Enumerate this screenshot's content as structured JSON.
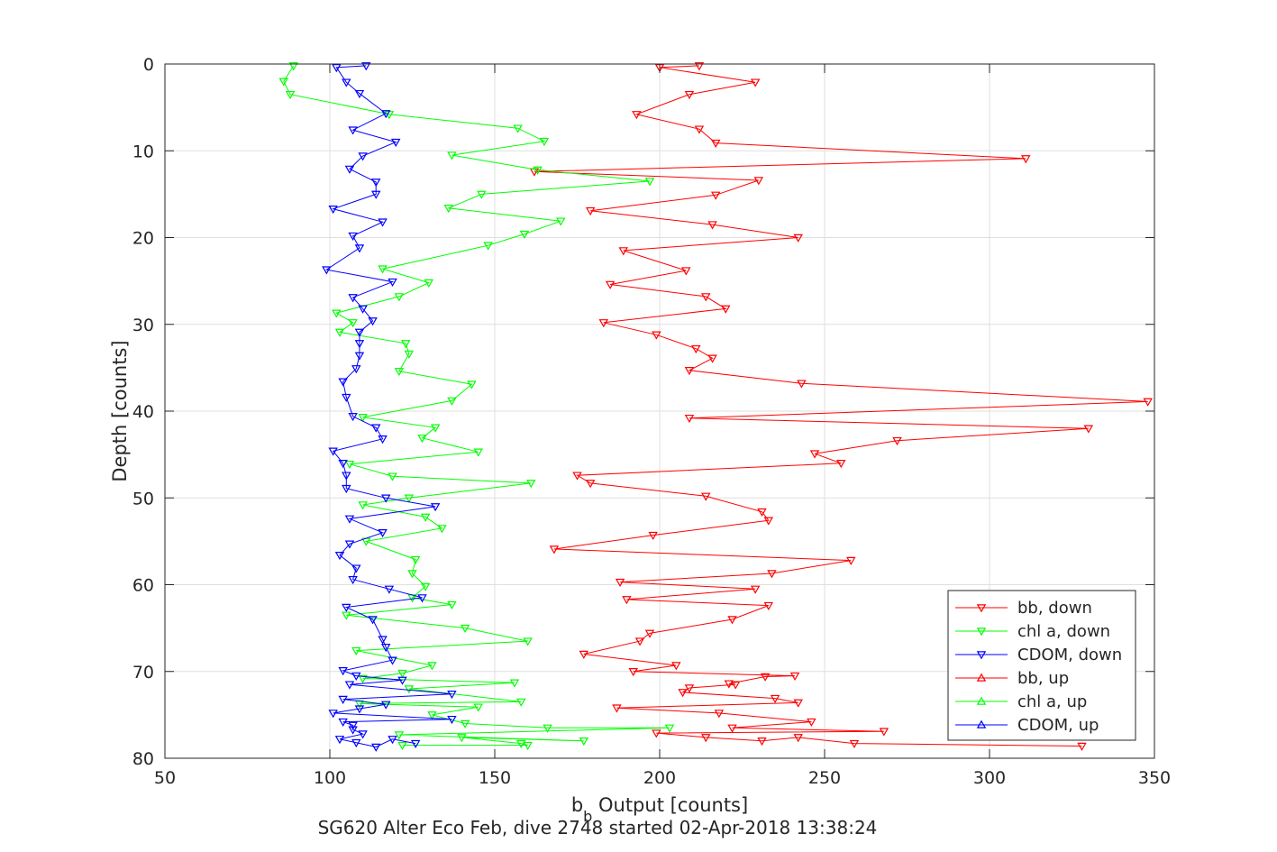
{
  "chart_data": {
    "type": "line",
    "title": "SG620 Alter Eco Feb, dive 2748 started 02-Apr-2018 13:38:24",
    "xlabel": {
      "main": "b",
      "sub": "b",
      "rest": " Output [counts]"
    },
    "ylabel": "Depth [counts]",
    "xlim": [
      50,
      350
    ],
    "ylim": [
      0,
      80
    ],
    "y_reversed": true,
    "grid": true,
    "legend_position": "bottom-right",
    "xticks": [
      "50",
      "100",
      "150",
      "200",
      "250",
      "300",
      "350"
    ],
    "yticks": [
      "0",
      "10",
      "20",
      "30",
      "40",
      "50",
      "60",
      "70",
      "80"
    ],
    "colors": {
      "bb": "#ff0000",
      "chla": "#00ff00",
      "cdom": "#0000ff",
      "axis": "#262626",
      "grid": "#dfdfdf"
    },
    "series": [
      {
        "name": "bb, down",
        "color": "#ff0000",
        "marker": "triangle-down",
        "points": [
          [
            212,
            0.2
          ],
          [
            200,
            0.4
          ],
          [
            229,
            2.1
          ],
          [
            209,
            3.5
          ],
          [
            193,
            5.8
          ],
          [
            212,
            7.5
          ],
          [
            217,
            9.1
          ],
          [
            311,
            10.9
          ],
          [
            162,
            12.4
          ],
          [
            230,
            13.4
          ],
          [
            217,
            15.1
          ],
          [
            179,
            16.9
          ],
          [
            216,
            18.5
          ],
          [
            242,
            20.0
          ],
          [
            189,
            21.5
          ],
          [
            208,
            23.8
          ],
          [
            185,
            25.4
          ],
          [
            214,
            26.8
          ],
          [
            220,
            28.2
          ],
          [
            183,
            29.8
          ],
          [
            199,
            31.2
          ],
          [
            211,
            32.8
          ],
          [
            216,
            33.9
          ],
          [
            209,
            35.3
          ],
          [
            243,
            36.8
          ],
          [
            348,
            38.9
          ],
          [
            209,
            40.8
          ],
          [
            330,
            42.0
          ],
          [
            272,
            43.4
          ],
          [
            247,
            44.9
          ],
          [
            255,
            46.0
          ],
          [
            175,
            47.4
          ],
          [
            179,
            48.3
          ],
          [
            214,
            49.8
          ],
          [
            231,
            51.6
          ],
          [
            233,
            52.6
          ],
          [
            198,
            54.3
          ],
          [
            168,
            55.9
          ],
          [
            258,
            57.2
          ],
          [
            234,
            58.7
          ],
          [
            188,
            59.7
          ],
          [
            229,
            60.5
          ],
          [
            190,
            61.7
          ],
          [
            233,
            62.4
          ],
          [
            222,
            64.0
          ],
          [
            197,
            65.6
          ],
          [
            194,
            66.5
          ],
          [
            177,
            68.0
          ],
          [
            205,
            69.3
          ],
          [
            192,
            70.0
          ],
          [
            241,
            70.5
          ],
          [
            232,
            70.6
          ],
          [
            221,
            71.4
          ],
          [
            223,
            71.5
          ],
          [
            209,
            71.9
          ],
          [
            207,
            72.4
          ],
          [
            235,
            73.1
          ],
          [
            242,
            73.6
          ],
          [
            187,
            74.2
          ],
          [
            218,
            74.8
          ],
          [
            246,
            75.8
          ],
          [
            222,
            76.5
          ],
          [
            268,
            76.9
          ],
          [
            199,
            77.1
          ],
          [
            214,
            77.6
          ],
          [
            231,
            78.0
          ],
          [
            242,
            77.6
          ],
          [
            259,
            78.3
          ],
          [
            328,
            78.6
          ]
        ]
      },
      {
        "name": "chl a, down",
        "color": "#00ff00",
        "marker": "triangle-down",
        "points": [
          [
            89,
            0.2
          ],
          [
            86,
            2.0
          ],
          [
            88,
            3.5
          ],
          [
            118,
            5.8
          ],
          [
            157,
            7.4
          ],
          [
            165,
            8.9
          ],
          [
            137,
            10.5
          ],
          [
            163,
            12.2
          ],
          [
            197,
            13.5
          ],
          [
            146,
            15.0
          ],
          [
            136,
            16.6
          ],
          [
            170,
            18.1
          ],
          [
            159,
            19.6
          ],
          [
            148,
            20.9
          ],
          [
            116,
            23.6
          ],
          [
            130,
            25.2
          ],
          [
            121,
            26.8
          ],
          [
            102,
            28.7
          ],
          [
            107,
            29.8
          ],
          [
            103,
            30.9
          ],
          [
            123,
            32.2
          ],
          [
            124,
            33.4
          ],
          [
            121,
            35.4
          ],
          [
            143,
            36.9
          ],
          [
            137,
            38.8
          ],
          [
            110,
            40.7
          ],
          [
            132,
            41.9
          ],
          [
            128,
            43.1
          ],
          [
            145,
            44.7
          ],
          [
            106,
            46.1
          ],
          [
            119,
            47.5
          ],
          [
            161,
            48.3
          ],
          [
            124,
            50.0
          ],
          [
            110,
            50.8
          ],
          [
            129,
            52.2
          ],
          [
            134,
            53.5
          ],
          [
            111,
            55.0
          ],
          [
            126,
            57.1
          ],
          [
            125,
            58.7
          ],
          [
            129,
            60.2
          ],
          [
            125,
            61.5
          ],
          [
            137,
            62.3
          ],
          [
            105,
            63.5
          ],
          [
            141,
            65.0
          ],
          [
            160,
            66.5
          ],
          [
            108,
            67.6
          ],
          [
            131,
            69.3
          ],
          [
            122,
            70.2
          ],
          [
            110,
            70.8
          ],
          [
            156,
            71.3
          ],
          [
            124,
            72.0
          ],
          [
            158,
            73.5
          ],
          [
            109,
            73.7
          ],
          [
            145,
            74.1
          ],
          [
            131,
            75.0
          ],
          [
            141,
            76.0
          ],
          [
            166,
            76.5
          ],
          [
            203,
            76.5
          ],
          [
            121,
            77.3
          ],
          [
            177,
            78.0
          ],
          [
            140,
            77.6
          ],
          [
            158,
            78.3
          ],
          [
            160,
            78.5
          ],
          [
            122,
            78.5
          ]
        ]
      },
      {
        "name": "CDOM, down",
        "color": "#0000ff",
        "marker": "triangle-down",
        "points": [
          [
            111,
            0.2
          ],
          [
            102,
            0.4
          ],
          [
            105,
            2.1
          ],
          [
            109,
            3.4
          ],
          [
            117,
            5.7
          ],
          [
            107,
            7.6
          ],
          [
            120,
            9.0
          ],
          [
            110,
            10.6
          ],
          [
            106,
            12.1
          ],
          [
            114,
            13.6
          ],
          [
            114,
            15.0
          ],
          [
            101,
            16.7
          ],
          [
            116,
            18.2
          ],
          [
            107,
            19.8
          ],
          [
            109,
            21.2
          ],
          [
            99,
            23.7
          ],
          [
            119,
            25.1
          ],
          [
            107,
            26.9
          ],
          [
            110,
            28.2
          ],
          [
            113,
            29.6
          ],
          [
            109,
            30.9
          ],
          [
            109,
            32.2
          ],
          [
            109,
            33.6
          ],
          [
            108,
            35.1
          ],
          [
            104,
            36.6
          ],
          [
            105,
            38.4
          ],
          [
            107,
            40.6
          ],
          [
            114,
            41.9
          ],
          [
            116,
            43.2
          ],
          [
            101,
            44.6
          ],
          [
            104,
            46.0
          ],
          [
            105,
            47.4
          ],
          [
            105,
            48.9
          ],
          [
            117,
            50.0
          ],
          [
            132,
            51.0
          ],
          [
            106,
            52.4
          ],
          [
            116,
            54.0
          ],
          [
            106,
            55.3
          ],
          [
            103,
            56.6
          ],
          [
            108,
            58.1
          ],
          [
            107,
            59.4
          ],
          [
            118,
            60.5
          ],
          [
            128,
            61.5
          ],
          [
            105,
            62.6
          ],
          [
            113,
            64.0
          ],
          [
            116,
            66.3
          ],
          [
            117,
            67.2
          ],
          [
            119,
            68.7
          ],
          [
            104,
            69.9
          ],
          [
            108,
            70.5
          ],
          [
            122,
            71.0
          ],
          [
            106,
            71.5
          ],
          [
            137,
            72.6
          ],
          [
            104,
            73.2
          ],
          [
            117,
            73.8
          ],
          [
            109,
            74.3
          ],
          [
            101,
            74.8
          ],
          [
            137,
            75.5
          ],
          [
            104,
            75.8
          ],
          [
            107,
            76.2
          ],
          [
            107,
            76.7
          ],
          [
            110,
            77.2
          ],
          [
            103,
            77.8
          ],
          [
            108,
            78.2
          ],
          [
            114,
            78.7
          ],
          [
            119,
            77.8
          ],
          [
            126,
            78.3
          ]
        ]
      },
      {
        "name": "bb, up",
        "color": "#ff0000",
        "marker": "triangle-up",
        "points": []
      },
      {
        "name": "chl a, up",
        "color": "#00ff00",
        "marker": "triangle-up",
        "points": []
      },
      {
        "name": "CDOM, up",
        "color": "#0000ff",
        "marker": "triangle-up",
        "points": []
      }
    ]
  }
}
